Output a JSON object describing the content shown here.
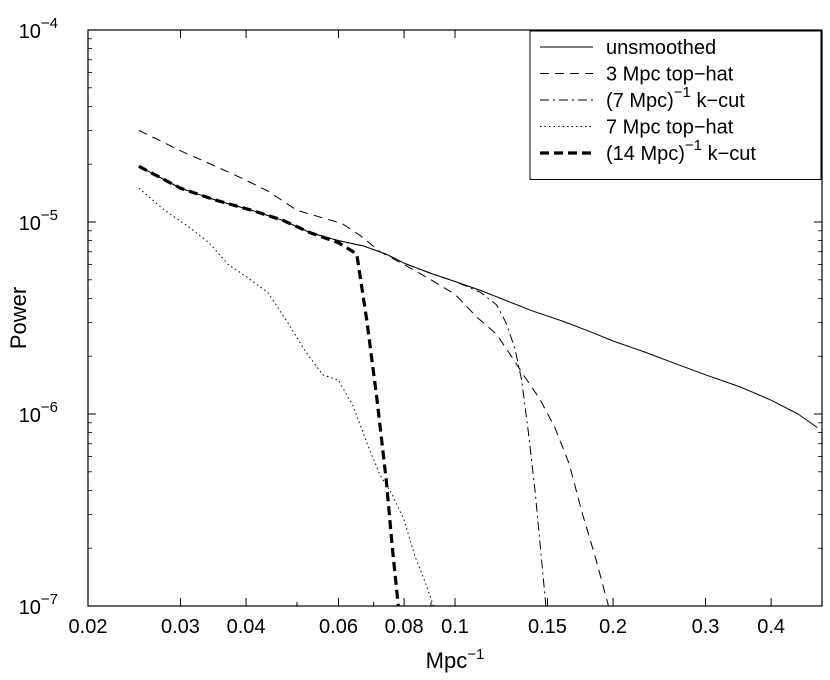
{
  "chart_data": {
    "type": "line",
    "title": "",
    "xlabel": "Mpc",
    "xlabel_exp": "−1",
    "ylabel": "Power",
    "xscale": "log",
    "yscale": "log",
    "xlim": [
      0.02,
      0.5
    ],
    "ylim": [
      1e-07,
      0.0001
    ],
    "grid": false,
    "legend_position": "top-right",
    "x_ticks": [
      {
        "value": 0.02,
        "label": "0.02"
      },
      {
        "value": 0.03,
        "label": "0.03"
      },
      {
        "value": 0.04,
        "label": "0.04"
      },
      {
        "value": 0.06,
        "label": "0.06"
      },
      {
        "value": 0.08,
        "label": "0.08"
      },
      {
        "value": 0.1,
        "label": "0.1"
      },
      {
        "value": 0.15,
        "label": "0.15"
      },
      {
        "value": 0.2,
        "label": "0.2"
      },
      {
        "value": 0.3,
        "label": "0.3"
      },
      {
        "value": 0.4,
        "label": "0.4"
      }
    ],
    "y_ticks": [
      {
        "value": 1e-07,
        "base": "10",
        "exp": "−7"
      },
      {
        "value": 1e-06,
        "base": "10",
        "exp": "−6"
      },
      {
        "value": 1e-05,
        "base": "10",
        "exp": "−5"
      },
      {
        "value": 0.0001,
        "base": "10",
        "exp": "−4"
      }
    ],
    "series": [
      {
        "name": "unsmoothed",
        "style": "solid",
        "color": "#000000",
        "points": [
          [
            0.025,
            1.95e-05
          ],
          [
            0.03,
            1.5e-05
          ],
          [
            0.035,
            1.3e-05
          ],
          [
            0.041,
            1.15e-05
          ],
          [
            0.047,
            1.02e-05
          ],
          [
            0.053,
            8.8e-06
          ],
          [
            0.06,
            8e-06
          ],
          [
            0.067,
            7.5e-06
          ],
          [
            0.074,
            6.8e-06
          ],
          [
            0.08,
            6.1e-06
          ],
          [
            0.09,
            5.4e-06
          ],
          [
            0.1,
            4.9e-06
          ],
          [
            0.112,
            4.4e-06
          ],
          [
            0.125,
            3.9e-06
          ],
          [
            0.14,
            3.45e-06
          ],
          [
            0.16,
            3.05e-06
          ],
          [
            0.18,
            2.7e-06
          ],
          [
            0.2,
            2.4e-06
          ],
          [
            0.23,
            2.1e-06
          ],
          [
            0.26,
            1.85e-06
          ],
          [
            0.3,
            1.6e-06
          ],
          [
            0.35,
            1.38e-06
          ],
          [
            0.4,
            1.18e-06
          ],
          [
            0.45,
            1e-06
          ],
          [
            0.49,
            8.5e-07
          ]
        ]
      },
      {
        "name": "3 Mpc top−hat",
        "style": "dashed",
        "color": "#000000",
        "points": [
          [
            0.025,
            3e-05
          ],
          [
            0.03,
            2.35e-05
          ],
          [
            0.035,
            1.95e-05
          ],
          [
            0.04,
            1.65e-05
          ],
          [
            0.044,
            1.45e-05
          ],
          [
            0.05,
            1.15e-05
          ],
          [
            0.056,
            1.05e-05
          ],
          [
            0.061,
            9.8e-06
          ],
          [
            0.066,
            8.5e-06
          ],
          [
            0.072,
            7e-06
          ],
          [
            0.08,
            6e-06
          ],
          [
            0.09,
            5e-06
          ],
          [
            0.1,
            4.2e-06
          ],
          [
            0.11,
            3.2e-06
          ],
          [
            0.12,
            2.6e-06
          ],
          [
            0.128,
            2e-06
          ],
          [
            0.135,
            1.6e-06
          ],
          [
            0.145,
            1.2e-06
          ],
          [
            0.155,
            8.5e-07
          ],
          [
            0.165,
            5.5e-07
          ],
          [
            0.175,
            3e-07
          ],
          [
            0.185,
            1.8e-07
          ],
          [
            0.196,
            1e-07
          ]
        ]
      },
      {
        "name": "(7 Mpc)",
        "name_exp": "−1",
        "name_suffix": " k−cut",
        "style": "dashdot",
        "color": "#000000",
        "points": [
          [
            0.025,
            1.95e-05
          ],
          [
            0.03,
            1.5e-05
          ],
          [
            0.035,
            1.3e-05
          ],
          [
            0.041,
            1.15e-05
          ],
          [
            0.047,
            1.02e-05
          ],
          [
            0.053,
            8.8e-06
          ],
          [
            0.06,
            8e-06
          ],
          [
            0.067,
            7.5e-06
          ],
          [
            0.074,
            6.8e-06
          ],
          [
            0.08,
            6.1e-06
          ],
          [
            0.09,
            5.4e-06
          ],
          [
            0.1,
            4.9e-06
          ],
          [
            0.112,
            4.3e-06
          ],
          [
            0.12,
            3.7e-06
          ],
          [
            0.125,
            3e-06
          ],
          [
            0.13,
            2.2e-06
          ],
          [
            0.134,
            1.5e-06
          ],
          [
            0.138,
            8e-07
          ],
          [
            0.142,
            4e-07
          ],
          [
            0.146,
            1.8e-07
          ],
          [
            0.149,
            1e-07
          ]
        ]
      },
      {
        "name": "7 Mpc top−hat",
        "style": "dotted",
        "color": "#000000",
        "points": [
          [
            0.025,
            1.5e-05
          ],
          [
            0.028,
            1.15e-05
          ],
          [
            0.031,
            9.5e-06
          ],
          [
            0.034,
            7.8e-06
          ],
          [
            0.037,
            6e-06
          ],
          [
            0.04,
            5.2e-06
          ],
          [
            0.044,
            4.3e-06
          ],
          [
            0.048,
            3e-06
          ],
          [
            0.052,
            2.1e-06
          ],
          [
            0.056,
            1.6e-06
          ],
          [
            0.06,
            1.5e-06
          ],
          [
            0.064,
            1.1e-06
          ],
          [
            0.068,
            7e-07
          ],
          [
            0.072,
            4.8e-07
          ],
          [
            0.076,
            3.8e-07
          ],
          [
            0.08,
            2.8e-07
          ],
          [
            0.084,
            1.8e-07
          ],
          [
            0.088,
            1.3e-07
          ],
          [
            0.091,
            1e-07
          ]
        ]
      },
      {
        "name": "(14 Mpc)",
        "name_exp": "−1",
        "name_suffix": " k−cut",
        "style": "thick-dashed",
        "color": "#000000",
        "points": [
          [
            0.025,
            1.95e-05
          ],
          [
            0.03,
            1.5e-05
          ],
          [
            0.035,
            1.3e-05
          ],
          [
            0.041,
            1.15e-05
          ],
          [
            0.047,
            1.02e-05
          ],
          [
            0.053,
            8.8e-06
          ],
          [
            0.06,
            7.8e-06
          ],
          [
            0.064,
            7e-06
          ],
          [
            0.065,
            6.8e-06
          ],
          [
            0.068,
            3e-06
          ],
          [
            0.071,
            1.2e-06
          ],
          [
            0.074,
            4.5e-07
          ],
          [
            0.076,
            2e-07
          ],
          [
            0.078,
            1e-07
          ]
        ]
      }
    ]
  }
}
